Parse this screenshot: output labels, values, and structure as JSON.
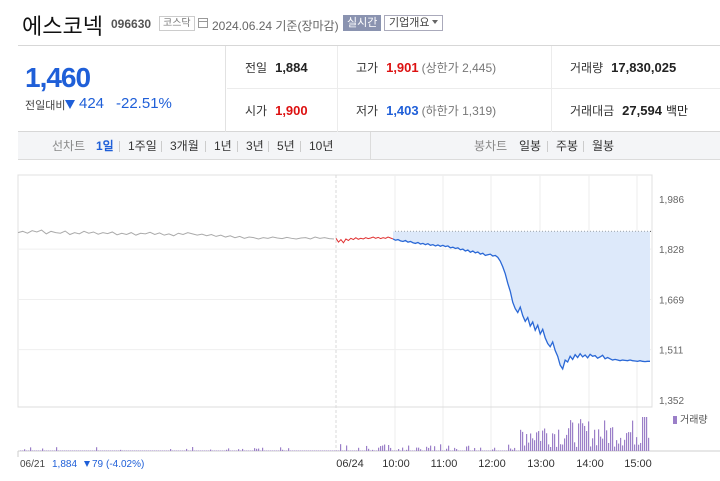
{
  "header": {
    "name": "에스코넥",
    "code": "096630",
    "market": "코스닥",
    "date": "2024.06.24 기준(장마감)",
    "realtime": "실시간",
    "company": "기업개요"
  },
  "summary": {
    "price": "1,460",
    "prev_label": "전일대비",
    "change": "424",
    "change_pct": "-22.51%",
    "row1": {
      "prev": {
        "label": "전일",
        "value": "1,884"
      },
      "high": {
        "label": "고가",
        "value": "1,901",
        "sub": "(상한가 2,445)"
      },
      "volume": {
        "label": "거래량",
        "value": "17,830,025"
      }
    },
    "row2": {
      "open": {
        "label": "시가",
        "value": "1,900"
      },
      "low": {
        "label": "저가",
        "value": "1,403",
        "sub": "(하한가 1,319)"
      },
      "amount": {
        "label": "거래대금",
        "value": "27,594",
        "unit": "백만"
      }
    }
  },
  "tabs": {
    "line_label": "선차트",
    "line_tabs": [
      "1일",
      "1주일",
      "3개월",
      "1년",
      "3년",
      "5년",
      "10년"
    ],
    "active": "1일",
    "candle_label": "봉차트",
    "candle_tabs": [
      "일봉",
      "주봉",
      "월봉"
    ]
  },
  "chart_data": {
    "type": "line",
    "y_ticks": [
      "1,986",
      "1,828",
      "1,669",
      "1,511",
      "1,352"
    ],
    "ylim": [
      1352,
      1986
    ],
    "reference_price": 1884,
    "volume_label": "거래량",
    "x_ticks": [
      "06/24",
      "10:00",
      "11:00",
      "12:00",
      "13:00",
      "14:00",
      "15:00"
    ],
    "prev_day": {
      "date": "06/21",
      "close": "1,884",
      "change": "79",
      "change_pct": "(-4.02%)"
    },
    "prev_day_series": [
      1880,
      1884,
      1878,
      1886,
      1882,
      1888,
      1876,
      1884,
      1880,
      1878,
      1885,
      1874,
      1880,
      1876,
      1884,
      1878,
      1882,
      1875,
      1880,
      1877,
      1882,
      1873,
      1878,
      1874,
      1880,
      1872,
      1878,
      1876,
      1881,
      1874,
      1879,
      1872,
      1876,
      1870,
      1878,
      1874,
      1880,
      1876,
      1872,
      1875,
      1870,
      1874,
      1868,
      1872,
      1866,
      1870,
      1864,
      1868,
      1862,
      1866,
      1864,
      1860,
      1864,
      1862,
      1866,
      1863,
      1861,
      1865,
      1862,
      1860,
      1863,
      1864,
      1860,
      1866,
      1862,
      1864,
      1861,
      1860
    ],
    "today_early_series": [
      1862,
      1850,
      1858,
      1848,
      1860,
      1855,
      1862,
      1858,
      1864,
      1859,
      1862,
      1860,
      1864,
      1861,
      1863,
      1866,
      1862,
      1865,
      1861,
      1864,
      1862,
      1866,
      1863,
      1860
    ],
    "today_series": [
      1860,
      1856,
      1858,
      1854,
      1852,
      1855,
      1850,
      1852,
      1848,
      1846,
      1849,
      1844,
      1846,
      1842,
      1845,
      1840,
      1842,
      1838,
      1841,
      1837,
      1840,
      1836,
      1838,
      1832,
      1834,
      1830,
      1832,
      1826,
      1828,
      1822,
      1825,
      1818,
      1822,
      1816,
      1819,
      1812,
      1815,
      1808,
      1810,
      1812,
      1806,
      1808,
      1802,
      1790,
      1772,
      1750,
      1720,
      1695,
      1660,
      1640,
      1628,
      1645,
      1618,
      1600,
      1612,
      1585,
      1598,
      1572,
      1588,
      1560,
      1575,
      1548,
      1530,
      1520,
      1535,
      1508,
      1490,
      1462,
      1450,
      1478,
      1472,
      1490,
      1480,
      1495,
      1486,
      1498,
      1488,
      1494,
      1485,
      1496,
      1490,
      1492,
      1484,
      1488,
      1493,
      1482,
      1486,
      1482,
      1478,
      1480,
      1478,
      1476,
      1478,
      1477,
      1476,
      1478,
      1476,
      1475,
      1474,
      1476,
      1474,
      1473,
      1474,
      1474
    ]
  }
}
